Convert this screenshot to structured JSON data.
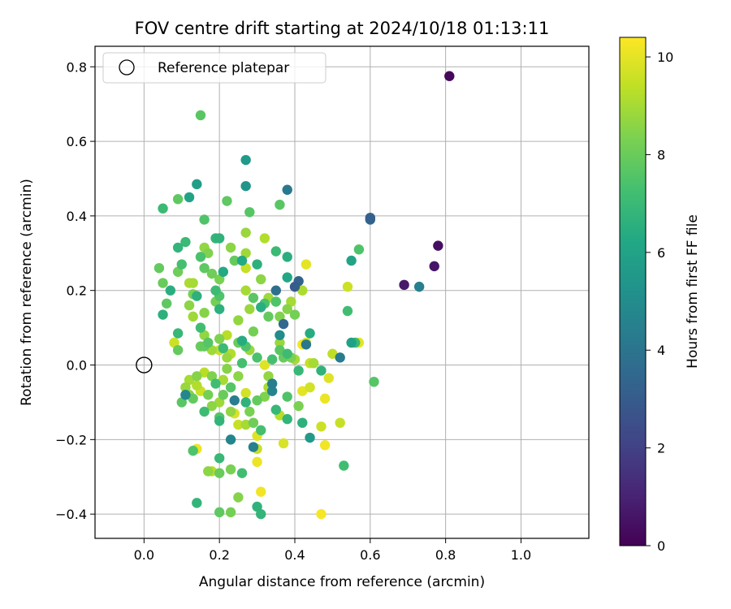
{
  "chart_data": {
    "type": "scatter",
    "title": "FOV centre drift starting at 2024/10/18 01:13:11",
    "xlabel": "Angular distance from reference (arcmin)",
    "ylabel": "Rotation from reference (arcmin)",
    "xlim": [
      -0.13,
      1.18
    ],
    "ylim": [
      -0.465,
      0.855
    ],
    "xticks": [
      0.0,
      0.2,
      0.4,
      0.6,
      0.8,
      1.0
    ],
    "xtick_labels": [
      "0.0",
      "0.2",
      "0.4",
      "0.6",
      "0.8",
      "1.0"
    ],
    "yticks": [
      -0.4,
      -0.2,
      0.0,
      0.2,
      0.4,
      0.6,
      0.8
    ],
    "ytick_labels": [
      "−0.4",
      "−0.2",
      "0.0",
      "0.2",
      "0.4",
      "0.6",
      "0.8"
    ],
    "grid": true,
    "legend": {
      "position": "top-left",
      "label": "Reference platepar"
    },
    "reference_point": {
      "x": 0.0,
      "y": 0.0
    },
    "colorbar": {
      "label": "Hours from first FF file",
      "colormap": "viridis",
      "range": [
        0,
        10.4
      ],
      "ticks": [
        0,
        2,
        4,
        6,
        8,
        10
      ],
      "tick_labels": [
        "0",
        "2",
        "4",
        "6",
        "8",
        "10"
      ]
    },
    "points": [
      [
        0.81,
        0.775,
        0.2
      ],
      [
        0.78,
        0.32,
        0.4
      ],
      [
        0.77,
        0.265,
        0.6
      ],
      [
        0.69,
        0.215,
        0.7
      ],
      [
        0.73,
        0.21,
        4.5
      ],
      [
        0.6,
        0.395,
        3.2
      ],
      [
        0.6,
        0.39,
        3.4
      ],
      [
        0.38,
        0.47,
        4.2
      ],
      [
        0.41,
        0.225,
        3.3
      ],
      [
        0.4,
        0.21,
        3.0
      ],
      [
        0.37,
        0.11,
        3.5
      ],
      [
        0.35,
        0.2,
        3.8
      ],
      [
        0.52,
        0.02,
        4.3
      ],
      [
        0.43,
        0.055,
        4.1
      ],
      [
        0.34,
        -0.05,
        4.4
      ],
      [
        0.34,
        -0.07,
        4.6
      ],
      [
        0.23,
        -0.2,
        4.7
      ],
      [
        0.29,
        -0.22,
        4.5
      ],
      [
        0.11,
        -0.08,
        4.8
      ],
      [
        0.36,
        0.08,
        5.0
      ],
      [
        0.27,
        0.55,
        5.6
      ],
      [
        0.27,
        0.48,
        5.4
      ],
      [
        0.14,
        0.485,
        5.8
      ],
      [
        0.12,
        0.45,
        6.0
      ],
      [
        0.38,
        0.235,
        6.2
      ],
      [
        0.55,
        0.28,
        6.0
      ],
      [
        0.55,
        0.06,
        5.9
      ],
      [
        0.21,
        0.25,
        6.3
      ],
      [
        0.07,
        0.2,
        6.5
      ],
      [
        0.05,
        0.135,
        6.6
      ],
      [
        0.09,
        0.085,
        6.9
      ],
      [
        0.3,
        -0.38,
        6.7
      ],
      [
        0.31,
        -0.4,
        6.8
      ],
      [
        0.14,
        -0.37,
        6.8
      ],
      [
        0.26,
        -0.29,
        7.2
      ],
      [
        0.2,
        -0.25,
        6.9
      ],
      [
        0.38,
        -0.145,
        6.8
      ],
      [
        0.42,
        -0.155,
        6.6
      ],
      [
        0.47,
        -0.015,
        6.7
      ],
      [
        0.44,
        0.085,
        6.4
      ],
      [
        0.38,
        0.29,
        6.5
      ],
      [
        0.35,
        0.305,
        7.0
      ],
      [
        0.3,
        0.27,
        6.6
      ],
      [
        0.2,
        0.34,
        6.7
      ],
      [
        0.11,
        0.33,
        7.0
      ],
      [
        0.09,
        0.315,
        6.8
      ],
      [
        0.05,
        0.42,
        7.0
      ],
      [
        0.16,
        0.39,
        7.5
      ],
      [
        0.22,
        0.44,
        7.8
      ],
      [
        0.28,
        0.41,
        7.6
      ],
      [
        0.36,
        0.43,
        7.7
      ],
      [
        0.57,
        0.31,
        7.5
      ],
      [
        0.54,
        0.145,
        7.2
      ],
      [
        0.61,
        -0.045,
        7.6
      ],
      [
        0.53,
        -0.27,
        7.2
      ],
      [
        0.15,
        0.67,
        7.7
      ],
      [
        0.09,
        0.445,
        7.8
      ],
      [
        0.04,
        0.26,
        7.9
      ],
      [
        0.05,
        0.22,
        8.0
      ],
      [
        0.06,
        0.165,
        7.8
      ],
      [
        0.09,
        0.25,
        8.1
      ],
      [
        0.09,
        0.04,
        7.9
      ],
      [
        0.1,
        -0.1,
        7.7
      ],
      [
        0.13,
        -0.23,
        7.5
      ],
      [
        0.2,
        -0.395,
        7.8
      ],
      [
        0.23,
        -0.395,
        8.2
      ],
      [
        0.25,
        -0.355,
        8.5
      ],
      [
        0.23,
        -0.28,
        8.3
      ],
      [
        0.17,
        -0.285,
        8.6
      ],
      [
        0.2,
        -0.29,
        8.0
      ],
      [
        0.17,
        0.3,
        8.4
      ],
      [
        0.23,
        0.315,
        8.6
      ],
      [
        0.27,
        0.355,
        8.8
      ],
      [
        0.32,
        0.34,
        9.2
      ],
      [
        0.27,
        0.3,
        8.9
      ],
      [
        0.16,
        0.315,
        8.7
      ],
      [
        0.15,
        0.29,
        7.4
      ],
      [
        0.16,
        0.26,
        7.8
      ],
      [
        0.18,
        0.245,
        8.1
      ],
      [
        0.2,
        0.23,
        8.3
      ],
      [
        0.19,
        0.2,
        7.1
      ],
      [
        0.2,
        0.185,
        7.5
      ],
      [
        0.19,
        0.17,
        8.2
      ],
      [
        0.2,
        0.15,
        6.6
      ],
      [
        0.16,
        0.14,
        8.5
      ],
      [
        0.13,
        0.13,
        8.9
      ],
      [
        0.12,
        0.16,
        8.6
      ],
      [
        0.13,
        0.19,
        8.2
      ],
      [
        0.13,
        0.22,
        9.0
      ],
      [
        0.15,
        0.1,
        7.2
      ],
      [
        0.16,
        0.08,
        8.7
      ],
      [
        0.17,
        0.06,
        7.6
      ],
      [
        0.18,
        0.04,
        8.9
      ],
      [
        0.16,
        0.05,
        7.9
      ],
      [
        0.2,
        0.07,
        8.4
      ],
      [
        0.22,
        0.08,
        9.3
      ],
      [
        0.25,
        0.06,
        8.0
      ],
      [
        0.27,
        0.05,
        7.5
      ],
      [
        0.29,
        0.09,
        8.2
      ],
      [
        0.28,
        0.15,
        8.8
      ],
      [
        0.29,
        0.18,
        7.7
      ],
      [
        0.27,
        0.2,
        9.0
      ],
      [
        0.27,
        0.26,
        9.5
      ],
      [
        0.31,
        0.23,
        8.6
      ],
      [
        0.32,
        0.165,
        7.4
      ],
      [
        0.33,
        0.18,
        8.9
      ],
      [
        0.31,
        0.155,
        6.5
      ],
      [
        0.33,
        0.13,
        7.9
      ],
      [
        0.35,
        0.17,
        7.5
      ],
      [
        0.36,
        0.13,
        8.4
      ],
      [
        0.36,
        0.06,
        8.8
      ],
      [
        0.36,
        0.04,
        7.7
      ],
      [
        0.34,
        0.015,
        7.3
      ],
      [
        0.37,
        0.02,
        8.0
      ],
      [
        0.38,
        0.15,
        8.5
      ],
      [
        0.39,
        0.17,
        9.0
      ],
      [
        0.4,
        0.135,
        8.2
      ],
      [
        0.39,
        0.02,
        8.3
      ],
      [
        0.4,
        0.015,
        9.0
      ],
      [
        0.38,
        0.03,
        7.1
      ],
      [
        0.41,
        -0.015,
        6.9
      ],
      [
        0.43,
        0.06,
        9.8
      ],
      [
        0.44,
        0.005,
        9.5
      ],
      [
        0.42,
        0.2,
        9.1
      ],
      [
        0.43,
        0.27,
        10.0
      ],
      [
        0.5,
        0.03,
        9.4
      ],
      [
        0.54,
        0.21,
        9.6
      ],
      [
        0.57,
        0.06,
        10.0
      ],
      [
        0.56,
        0.06,
        7.0
      ],
      [
        0.49,
        -0.035,
        9.9
      ],
      [
        0.48,
        -0.09,
        10.1
      ],
      [
        0.47,
        -0.165,
        9.6
      ],
      [
        0.48,
        -0.215,
        10.2
      ],
      [
        0.52,
        -0.155,
        9.5
      ],
      [
        0.47,
        -0.4,
        10.3
      ],
      [
        0.37,
        -0.21,
        9.8
      ],
      [
        0.31,
        -0.34,
        10.2
      ],
      [
        0.3,
        -0.26,
        10.1
      ],
      [
        0.3,
        -0.225,
        9.5
      ],
      [
        0.3,
        -0.19,
        9.9
      ],
      [
        0.31,
        -0.175,
        7.3
      ],
      [
        0.27,
        -0.16,
        9.0
      ],
      [
        0.29,
        -0.155,
        8.1
      ],
      [
        0.25,
        -0.16,
        9.5
      ],
      [
        0.24,
        -0.13,
        9.8
      ],
      [
        0.23,
        -0.125,
        8.7
      ],
      [
        0.2,
        -0.14,
        7.6
      ],
      [
        0.2,
        -0.1,
        8.9
      ],
      [
        0.21,
        -0.08,
        8.0
      ],
      [
        0.23,
        -0.06,
        7.6
      ],
      [
        0.25,
        -0.03,
        8.6
      ],
      [
        0.24,
        -0.095,
        4.4
      ],
      [
        0.27,
        -0.1,
        6.7
      ],
      [
        0.28,
        -0.125,
        8.3
      ],
      [
        0.27,
        -0.075,
        9.7
      ],
      [
        0.3,
        -0.095,
        7.9
      ],
      [
        0.32,
        -0.085,
        8.4
      ],
      [
        0.33,
        -0.06,
        9.1
      ],
      [
        0.33,
        -0.03,
        8.7
      ],
      [
        0.32,
        0.0,
        9.9
      ],
      [
        0.3,
        0.02,
        7.4
      ],
      [
        0.28,
        0.04,
        8.8
      ],
      [
        0.26,
        0.005,
        7.3
      ],
      [
        0.22,
        0.02,
        8.8
      ],
      [
        0.23,
        0.03,
        9.2
      ],
      [
        0.2,
        0.04,
        9.5
      ],
      [
        0.22,
        -0.01,
        8.5
      ],
      [
        0.21,
        -0.04,
        9.0
      ],
      [
        0.19,
        -0.05,
        7.2
      ],
      [
        0.18,
        -0.03,
        8.4
      ],
      [
        0.16,
        -0.02,
        9.3
      ],
      [
        0.14,
        -0.03,
        8.5
      ],
      [
        0.14,
        -0.055,
        9.2
      ],
      [
        0.13,
        -0.09,
        7.9
      ],
      [
        0.12,
        -0.08,
        8.6
      ],
      [
        0.11,
        -0.06,
        8.8
      ],
      [
        0.12,
        -0.04,
        9.0
      ],
      [
        0.15,
        -0.07,
        9.6
      ],
      [
        0.17,
        -0.08,
        8.2
      ],
      [
        0.18,
        -0.11,
        8.6
      ],
      [
        0.16,
        -0.125,
        7.1
      ],
      [
        0.2,
        -0.15,
        6.8
      ],
      [
        0.14,
        -0.225,
        10.1
      ],
      [
        0.18,
        -0.285,
        9.3
      ],
      [
        0.42,
        0.055,
        10.2
      ],
      [
        0.44,
        -0.06,
        9.7
      ],
      [
        0.45,
        0.005,
        9.0
      ],
      [
        0.42,
        -0.07,
        10.0
      ],
      [
        0.41,
        -0.11,
        8.3
      ],
      [
        0.38,
        -0.085,
        7.5
      ],
      [
        0.35,
        -0.12,
        6.9
      ],
      [
        0.36,
        -0.135,
        9.3
      ],
      [
        0.44,
        -0.195,
        5.6
      ],
      [
        0.35,
        0.17,
        8.0
      ],
      [
        0.21,
        0.045,
        7.0
      ],
      [
        0.14,
        0.185,
        6.6
      ],
      [
        0.25,
        0.12,
        8.7
      ],
      [
        0.26,
        0.065,
        6.4
      ],
      [
        0.15,
        0.05,
        8.0
      ],
      [
        0.08,
        0.06,
        9.6
      ],
      [
        0.12,
        0.22,
        9.1
      ],
      [
        0.19,
        0.34,
        6.8
      ],
      [
        0.24,
        0.28,
        7.9
      ],
      [
        0.26,
        0.28,
        6.3
      ],
      [
        0.1,
        0.27,
        7.3
      ]
    ]
  }
}
